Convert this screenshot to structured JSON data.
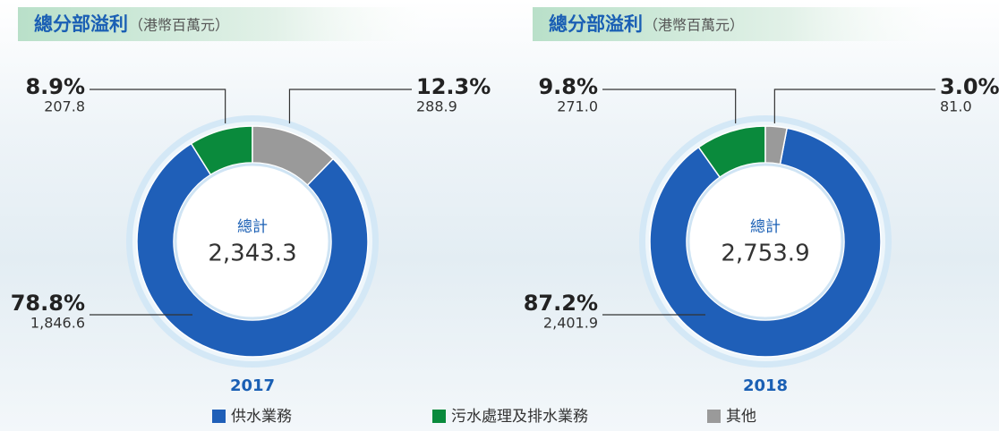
{
  "chart_data": [
    {
      "type": "pie",
      "title": "總分部溢利",
      "subtitle": "（港幣百萬元）",
      "center_label": "總計",
      "total": 2343.3,
      "total_label": "2,343.3",
      "year": "2017",
      "categories": [
        "供水業務",
        "污水處理及排水業務",
        "其他"
      ],
      "colors": [
        "#1f5fb8",
        "#0a8a3c",
        "#9a9a9a"
      ],
      "values": [
        78.8,
        8.9,
        12.3
      ],
      "value_labels": [
        "78.8%",
        "8.9%",
        "12.3%"
      ],
      "amounts": [
        1846.6,
        207.8,
        288.9
      ],
      "amount_labels": [
        "1,846.6",
        "207.8",
        "288.9"
      ]
    },
    {
      "type": "pie",
      "title": "總分部溢利",
      "subtitle": "（港幣百萬元）",
      "center_label": "總計",
      "total": 2753.9,
      "total_label": "2,753.9",
      "year": "2018",
      "categories": [
        "供水業務",
        "污水處理及排水業務",
        "其他"
      ],
      "colors": [
        "#1f5fb8",
        "#0a8a3c",
        "#9a9a9a"
      ],
      "values": [
        87.2,
        9.8,
        3.0
      ],
      "value_labels": [
        "87.2%",
        "9.8%",
        "3.0%"
      ],
      "amounts": [
        2401.9,
        271.0,
        81.0
      ],
      "amount_labels": [
        "2,401.9",
        "271.0",
        "81.0"
      ]
    }
  ]
}
